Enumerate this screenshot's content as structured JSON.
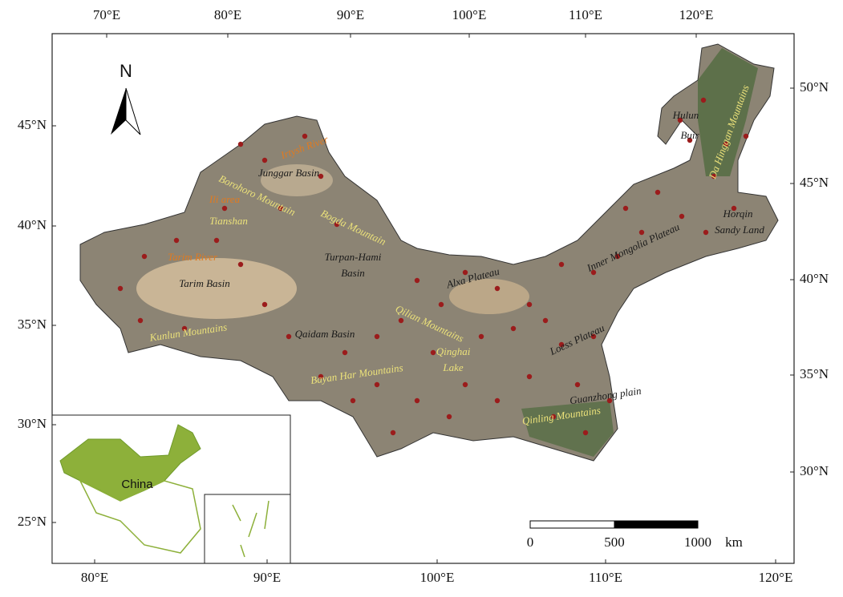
{
  "axes": {
    "top": [
      "70°E",
      "80°E",
      "90°E",
      "100°E",
      "110°E",
      "120°E"
    ],
    "bottom": [
      "80°E",
      "90°E",
      "100°E",
      "110°E",
      "120°E"
    ],
    "left": [
      "45°N",
      "40°N",
      "35°N",
      "30°N",
      "25°N"
    ],
    "right": [
      "50°N",
      "45°N",
      "40°N",
      "35°N",
      "30°N"
    ]
  },
  "north": "N",
  "labels": [
    "Hulun",
    "Buir",
    "Da Hinggan Mountains",
    "Horqin",
    "Sandy Land",
    "Inner Mongolia Plateau",
    "Alxa Plateau",
    "Junggar Basin",
    "Irtysh River",
    "Borohoro Mountain",
    "Ili area",
    "Tianshan",
    "Bogda Mountain",
    "Turpan-Hami",
    "Basin",
    "Tarim River",
    "Tarim Basin",
    "Kunlun Mountains",
    "Qaidam Basin",
    "Qilian Mountains",
    "Qinghai",
    "Lake",
    "Bayan Har Mountains",
    "Loess Plateau",
    "Guanzhong plain",
    "Qinling Mountains"
  ],
  "inset": {
    "label": "China"
  },
  "scale": {
    "ticks": [
      0,
      500,
      1000
    ],
    "unit": "km"
  }
}
